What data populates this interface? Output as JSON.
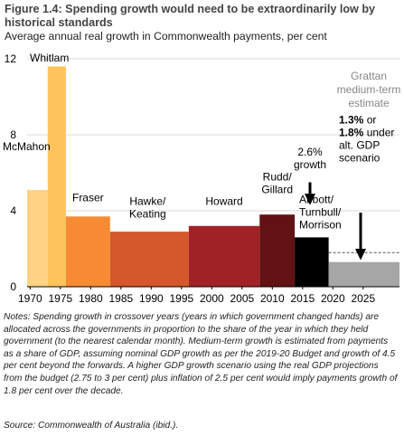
{
  "figure": {
    "title": "Figure 1.4: Spending growth would need to be extraordinarily low by historical standards",
    "subtitle": "Average annual real growth in Commonwealth payments, per cent",
    "notes": "Notes: Spending growth in crossover years (years in which government changed hands) are allocated across the governments in proportion to the share of the year in which they held government (to the nearest calendar month). Medium-term growth is estimated from payments as a share of GDP, assuming nominal GDP growth as per the 2019-20 Budget and growth of 4.5 per cent beyond the forwards. A higher GDP growth scenario using the real GDP projections from the budget (2.75 to 3 per cent) plus inflation of 2.5 per cent would imply payments growth of 1.8 per cent over the decade.",
    "source": "Source: Commonwealth of Australia (ibid.)."
  },
  "chart_data": {
    "type": "bar",
    "title": "Figure 1.4: Spending growth would need to be extraordinarily low by historical standards",
    "subtitle": "Average annual real growth in Commonwealth payments, per cent",
    "xlim": [
      1969.5,
      2031
    ],
    "ylim": [
      0,
      12
    ],
    "x_ticks": [
      "1970",
      "1975",
      "1980",
      "1985",
      "1990",
      "1995",
      "2000",
      "2005",
      "2010",
      "2015",
      "2020",
      "2025"
    ],
    "y_ticks": [
      "0",
      "4",
      "8",
      "12"
    ],
    "grid": "horizontal",
    "bars": [
      {
        "name": "McMahon",
        "label": "McMahon",
        "start": 1969.5,
        "end": 1972.9,
        "value": 5.1,
        "color": "#ffd383"
      },
      {
        "name": "Whitlam",
        "label": "Whitlam",
        "start": 1972.9,
        "end": 1975.9,
        "value": 11.6,
        "color": "#fec35a"
      },
      {
        "name": "Fraser",
        "label": "Fraser",
        "start": 1975.9,
        "end": 1983.2,
        "value": 3.7,
        "color": "#f68b33"
      },
      {
        "name": "Hawke/Keating",
        "label": "Hawke/\nKeating",
        "start": 1983.2,
        "end": 1996.2,
        "value": 2.9,
        "color": "#d4582a"
      },
      {
        "name": "Howard",
        "label": "Howard",
        "start": 1996.2,
        "end": 2007.9,
        "value": 3.2,
        "color": "#a02226"
      },
      {
        "name": "Rudd/Gillard",
        "label": "Rudd/\nGillard",
        "start": 2007.9,
        "end": 2013.7,
        "value": 3.8,
        "color": "#621214"
      },
      {
        "name": "Abbott/Turnbull/Morrison",
        "label": "Abbott/\nTurnbull/\nMorrison",
        "start": 2013.7,
        "end": 2019.3,
        "value": 2.6,
        "color": "#000000"
      },
      {
        "name": "Grattan medium-term estimate",
        "label": "Grattan\nmedium-term\nestimate",
        "start": 2019.3,
        "end": 2031,
        "value": 1.3,
        "alt_value": 1.8,
        "color": "#a6a6a6"
      }
    ],
    "annotations": [
      {
        "name": "growth-2-6",
        "text": "2.6%\ngrowth",
        "points_to": "Abbott/Turnbull/Morrison"
      },
      {
        "name": "grattan-values",
        "text": "1.3% or\n1.8% under\nalt. GDP\nscenario",
        "points_to": "Grattan medium-term estimate"
      }
    ]
  }
}
